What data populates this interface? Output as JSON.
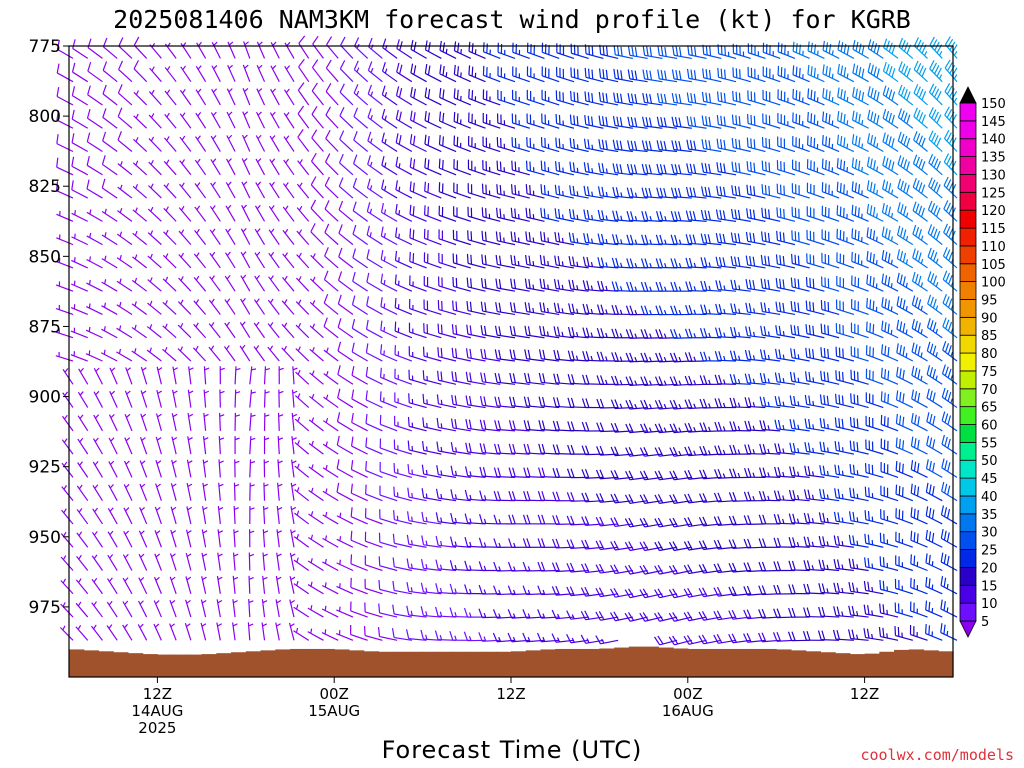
{
  "chart_data": {
    "type": "wind-barb-profile",
    "title": "2025081406 NAM3KM forecast wind profile (kt) for KGRB",
    "xlabel": "Forecast Time (UTC)",
    "source": "coolwx.com/models",
    "y_axis": {
      "unit": "hPa",
      "inverted": true,
      "range": [
        775,
        1000
      ],
      "ticks": [
        "775",
        "800",
        "825",
        "850",
        "875",
        "900",
        "925",
        "950",
        "975"
      ]
    },
    "x_axis": {
      "range_hours": [
        0,
        60
      ],
      "ticks": [
        {
          "hour": 6,
          "line1": "12Z",
          "line2": "14AUG",
          "line3": "2025"
        },
        {
          "hour": 18,
          "line1": "00Z",
          "line2": "15AUG",
          "line3": ""
        },
        {
          "hour": 30,
          "line1": "12Z",
          "line2": "",
          "line3": ""
        },
        {
          "hour": 42,
          "line1": "00Z",
          "line2": "16AUG",
          "line3": ""
        },
        {
          "hour": 54,
          "line1": "12Z",
          "line2": "",
          "line3": ""
        }
      ]
    },
    "colorbar": {
      "levels": [
        "5",
        "10",
        "15",
        "20",
        "25",
        "30",
        "35",
        "40",
        "45",
        "50",
        "55",
        "60",
        "65",
        "70",
        "75",
        "80",
        "85",
        "90",
        "95",
        "100",
        "105",
        "110",
        "115",
        "120",
        "125",
        "130",
        "135",
        "140",
        "145",
        "150"
      ],
      "colors": [
        "#8c00f0",
        "#6e10ff",
        "#4a00e6",
        "#2a00c8",
        "#0028e6",
        "#0050f0",
        "#0078f0",
        "#00a0f0",
        "#00c8e6",
        "#00e6c8",
        "#00f090",
        "#00e040",
        "#40f020",
        "#80f020",
        "#c0f000",
        "#f0f000",
        "#f0d800",
        "#f0b400",
        "#f09600",
        "#f08000",
        "#f06400",
        "#f04000",
        "#f02000",
        "#f00000",
        "#f00040",
        "#f00070",
        "#f000a0",
        "#f000c8",
        "#f000e8",
        "#f000f0"
      ]
    },
    "surface_color": "#a0522d",
    "wind_columns": [
      {
        "hour": 0,
        "dir": 300,
        "spd": 8,
        "sfc": 990
      },
      {
        "hour": 3,
        "dir": 310,
        "spd": 8,
        "sfc": 991
      },
      {
        "hour": 6,
        "dir": 320,
        "spd": 7,
        "sfc": 992
      },
      {
        "hour": 9,
        "dir": 330,
        "spd": 6,
        "sfc": 992
      },
      {
        "hour": 12,
        "dir": 340,
        "spd": 6,
        "sfc": 991
      },
      {
        "hour": 15,
        "dir": 330,
        "spd": 7,
        "sfc": 990
      },
      {
        "hour": 18,
        "dir": 320,
        "spd": 9,
        "sfc": 990
      },
      {
        "hour": 21,
        "dir": 310,
        "spd": 14,
        "sfc": 991
      },
      {
        "hour": 24,
        "dir": 300,
        "spd": 20,
        "sfc": 991
      },
      {
        "hour": 27,
        "dir": 295,
        "spd": 23,
        "sfc": 991
      },
      {
        "hour": 30,
        "dir": 290,
        "spd": 25,
        "sfc": 991
      },
      {
        "hour": 33,
        "dir": 290,
        "spd": 27,
        "sfc": 990
      },
      {
        "hour": 36,
        "dir": 285,
        "spd": 28,
        "sfc": 990
      },
      {
        "hour": 39,
        "dir": 280,
        "spd": 29,
        "sfc": 989
      },
      {
        "hour": 42,
        "dir": 280,
        "spd": 30,
        "sfc": 990
      },
      {
        "hour": 45,
        "dir": 285,
        "spd": 31,
        "sfc": 990
      },
      {
        "hour": 48,
        "dir": 290,
        "spd": 32,
        "sfc": 990
      },
      {
        "hour": 51,
        "dir": 295,
        "spd": 34,
        "sfc": 991
      },
      {
        "hour": 54,
        "dir": 300,
        "spd": 37,
        "sfc": 992
      },
      {
        "hour": 57,
        "dir": 310,
        "spd": 40,
        "sfc": 990
      },
      {
        "hour": 60,
        "dir": 320,
        "spd": 42,
        "sfc": 991
      }
    ]
  }
}
